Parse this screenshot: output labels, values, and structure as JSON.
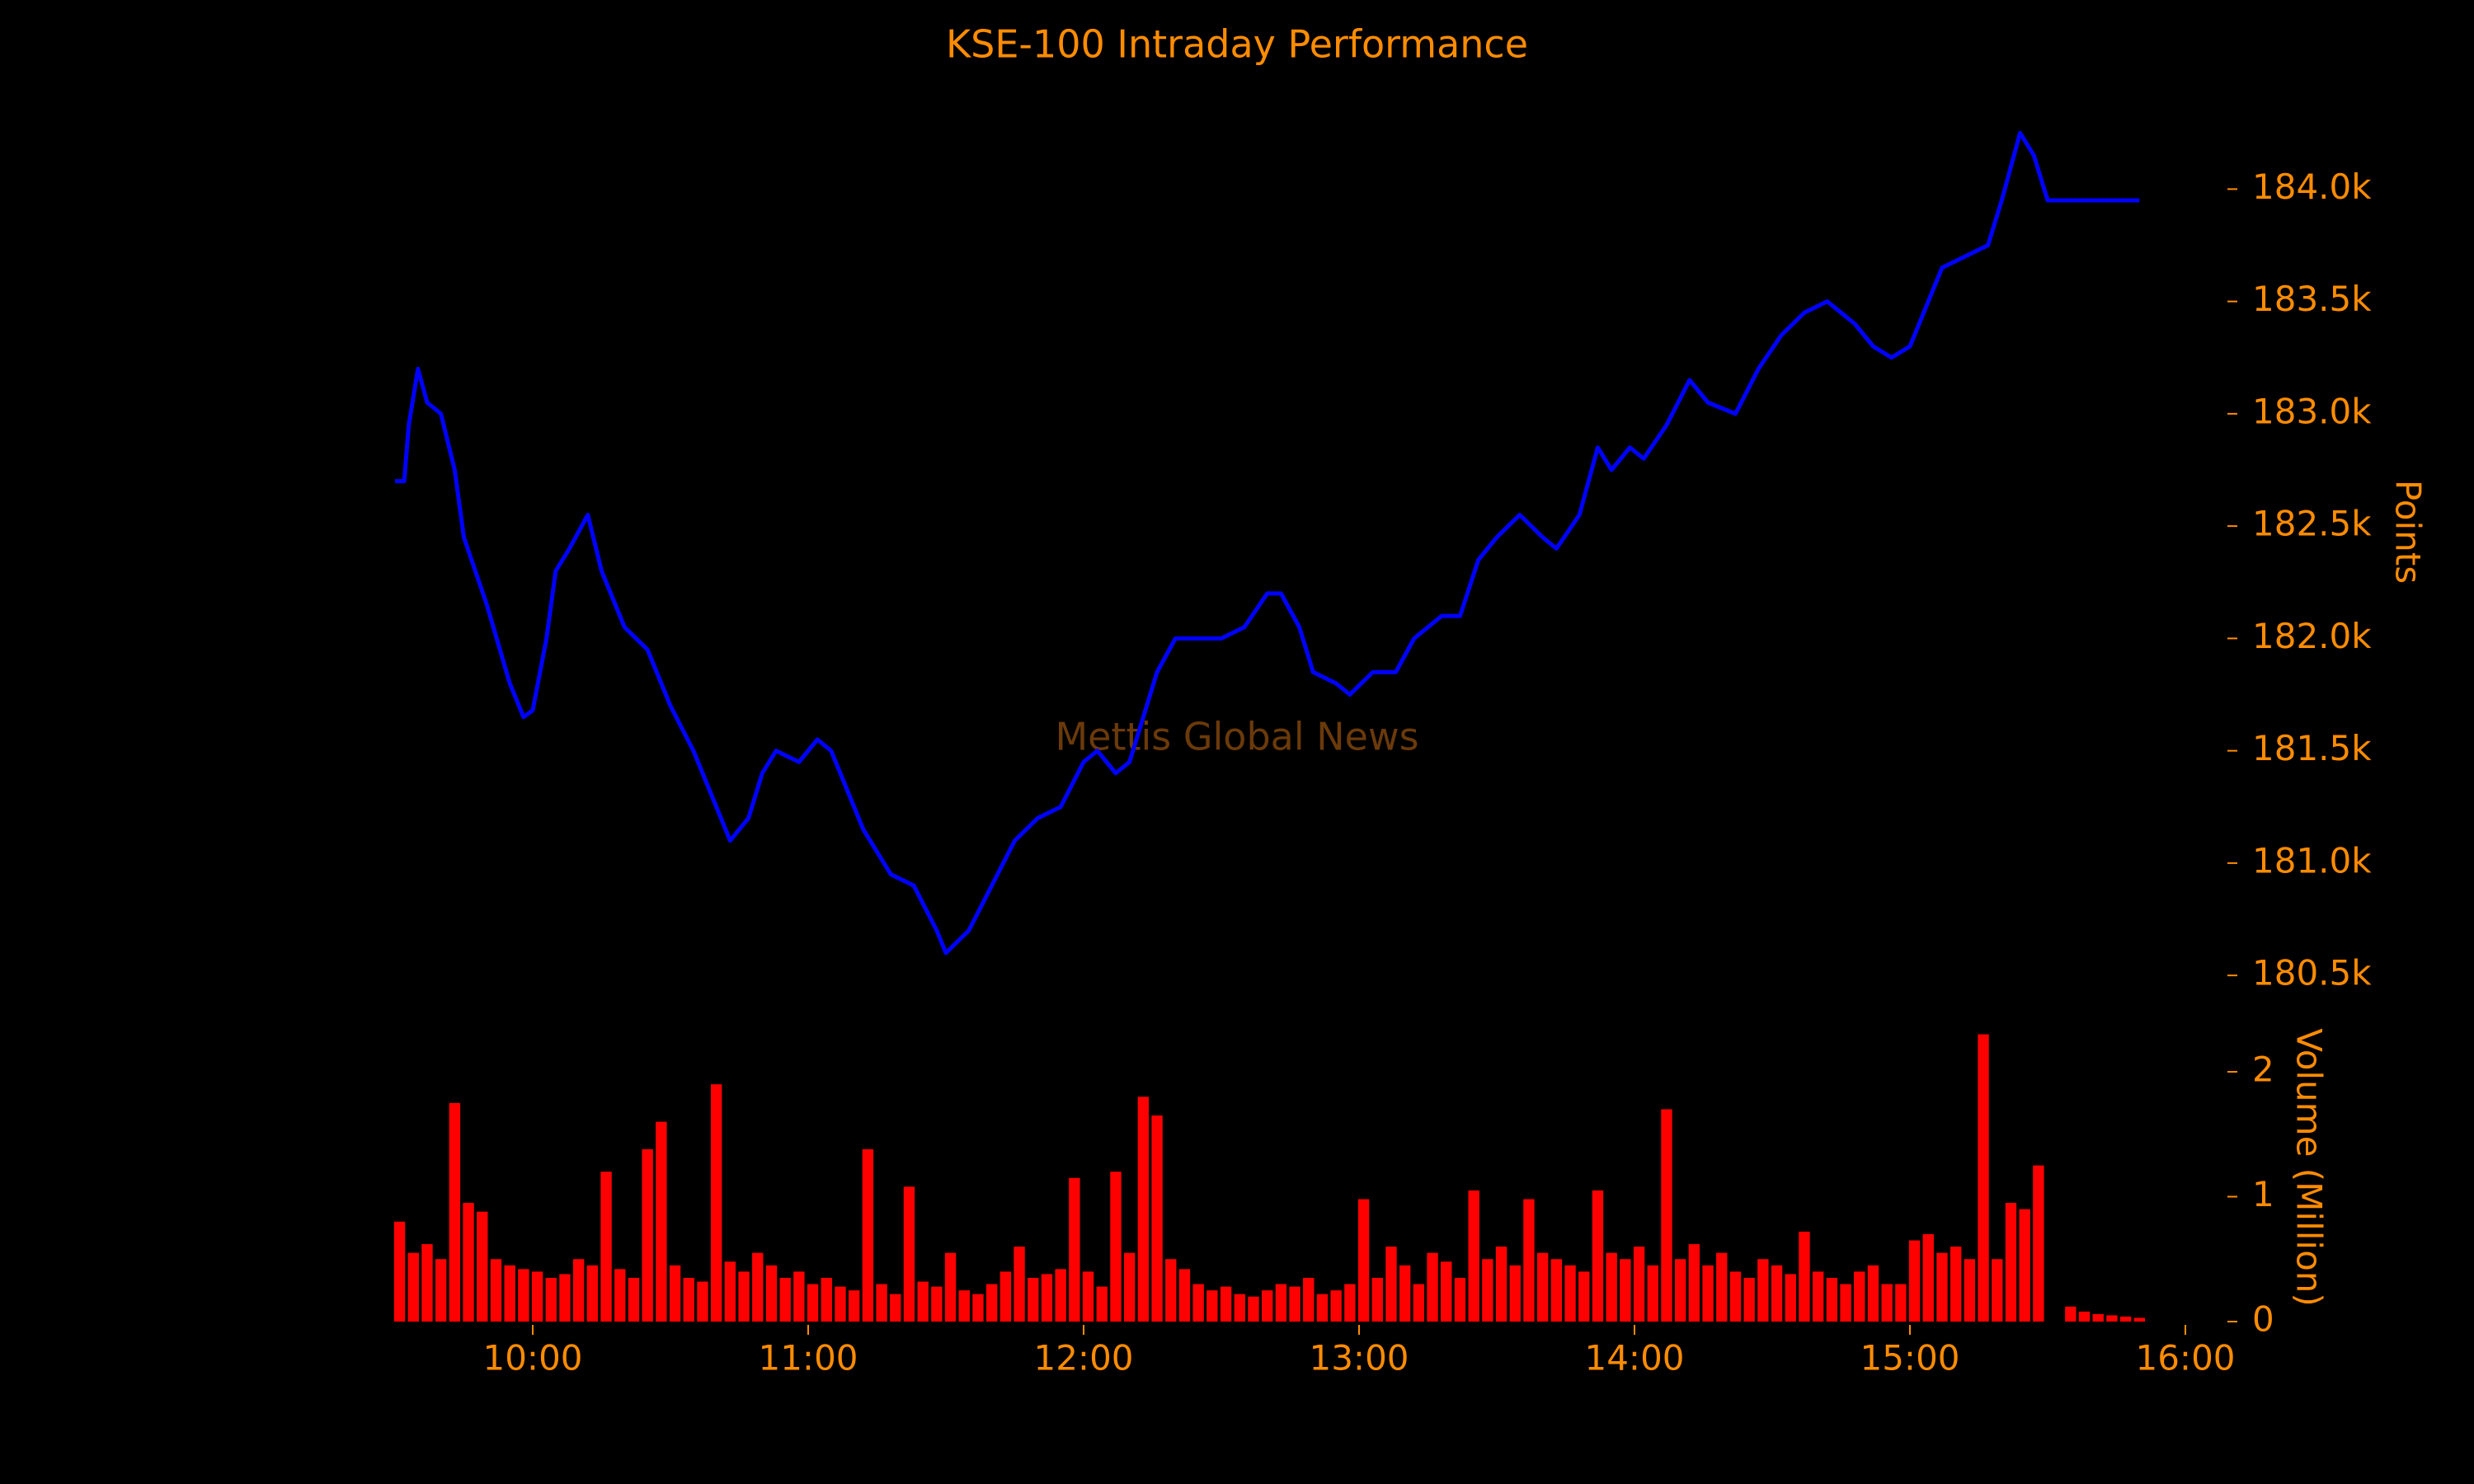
{
  "chart_data": [
    {
      "type": "line",
      "title": "KSE-100 Intraday Performance",
      "annotation": "Mettis Global News",
      "ylabel": "Points",
      "color": "#0000ff",
      "text_color": "#ff8c00",
      "watermark_color": "#6b3a0a",
      "x": [
        "09:30",
        "09:32",
        "09:33",
        "09:35",
        "09:37",
        "09:40",
        "09:43",
        "09:45",
        "09:50",
        "09:55",
        "09:58",
        "10:00",
        "10:03",
        "10:05",
        "10:08",
        "10:12",
        "10:15",
        "10:20",
        "10:25",
        "10:30",
        "10:35",
        "10:40",
        "10:43",
        "10:47",
        "10:50",
        "10:53",
        "10:58",
        "11:02",
        "11:05",
        "11:08",
        "11:12",
        "11:18",
        "11:23",
        "11:28",
        "11:30",
        "11:35",
        "11:40",
        "11:45",
        "11:50",
        "11:55",
        "12:00",
        "12:03",
        "12:07",
        "12:10",
        "12:13",
        "12:16",
        "12:20",
        "12:25",
        "12:30",
        "12:35",
        "12:40",
        "12:43",
        "12:47",
        "12:50",
        "12:55",
        "12:58",
        "13:03",
        "13:08",
        "13:12",
        "13:18",
        "13:22",
        "13:26",
        "13:30",
        "13:35",
        "13:40",
        "13:43",
        "13:48",
        "13:52",
        "13:55",
        "13:59",
        "14:02",
        "14:07",
        "14:12",
        "14:16",
        "14:22",
        "14:27",
        "14:32",
        "14:37",
        "14:42",
        "14:48",
        "14:52",
        "14:56",
        "15:00",
        "15:03",
        "15:07",
        "15:12",
        "15:17",
        "15:20",
        "15:24",
        "15:27",
        "15:30",
        "15:50"
      ],
      "values": [
        182700,
        182700,
        182950,
        183200,
        183050,
        183000,
        182750,
        182450,
        182150,
        181800,
        181650,
        181680,
        182000,
        182300,
        182400,
        182550,
        182300,
        182050,
        181950,
        181700,
        181500,
        181250,
        181100,
        181200,
        181400,
        181500,
        181450,
        181550,
        181500,
        181350,
        181150,
        180950,
        180900,
        180700,
        180600,
        180700,
        180900,
        181100,
        181200,
        181250,
        181450,
        181500,
        181400,
        181450,
        181650,
        181850,
        182000,
        182000,
        182000,
        182050,
        182200,
        182200,
        182050,
        181850,
        181800,
        181750,
        181850,
        181850,
        182000,
        182100,
        182100,
        182350,
        182450,
        182550,
        182450,
        182400,
        182550,
        182850,
        182750,
        182850,
        182800,
        182950,
        183150,
        183050,
        183000,
        183200,
        183350,
        183450,
        183500,
        183400,
        183300,
        183250,
        183300,
        183450,
        183650,
        183700,
        183750,
        183950,
        184250,
        184150,
        183950,
        183950
      ],
      "xlim": [
        "09:30",
        "16:00"
      ],
      "ylim": [
        180350,
        184350
      ],
      "yticks": [
        {
          "value": 180500,
          "label": "180.5k"
        },
        {
          "value": 181000,
          "label": "181.0k"
        },
        {
          "value": 181500,
          "label": "181.5k"
        },
        {
          "value": 182000,
          "label": "182.0k"
        },
        {
          "value": 182500,
          "label": "182.5k"
        },
        {
          "value": 183000,
          "label": "183.0k"
        },
        {
          "value": 183500,
          "label": "183.5k"
        },
        {
          "value": 184000,
          "label": "184.0k"
        }
      ]
    },
    {
      "type": "bar",
      "ylabel": "Volume (Million)",
      "color": "#ff0000",
      "text_color": "#ff8c00",
      "x": [
        "09:31",
        "09:34",
        "09:37",
        "09:40",
        "09:43",
        "09:46",
        "09:49",
        "09:52",
        "09:55",
        "09:58",
        "10:01",
        "10:04",
        "10:07",
        "10:10",
        "10:13",
        "10:16",
        "10:19",
        "10:22",
        "10:25",
        "10:28",
        "10:31",
        "10:34",
        "10:37",
        "10:40",
        "10:43",
        "10:46",
        "10:49",
        "10:52",
        "10:55",
        "10:58",
        "11:01",
        "11:04",
        "11:07",
        "11:10",
        "11:13",
        "11:16",
        "11:19",
        "11:22",
        "11:25",
        "11:28",
        "11:31",
        "11:34",
        "11:37",
        "11:40",
        "11:43",
        "11:46",
        "11:49",
        "11:52",
        "11:55",
        "11:58",
        "12:01",
        "12:04",
        "12:07",
        "12:10",
        "12:13",
        "12:16",
        "12:19",
        "12:22",
        "12:25",
        "12:28",
        "12:31",
        "12:34",
        "12:37",
        "12:40",
        "12:43",
        "12:46",
        "12:49",
        "12:52",
        "12:55",
        "12:58",
        "13:01",
        "13:04",
        "13:07",
        "13:10",
        "13:13",
        "13:16",
        "13:19",
        "13:22",
        "13:25",
        "13:28",
        "13:31",
        "13:34",
        "13:37",
        "13:40",
        "13:43",
        "13:46",
        "13:49",
        "13:52",
        "13:55",
        "13:58",
        "14:01",
        "14:04",
        "14:07",
        "14:10",
        "14:13",
        "14:16",
        "14:19",
        "14:22",
        "14:25",
        "14:28",
        "14:31",
        "14:34",
        "14:37",
        "14:40",
        "14:43",
        "14:46",
        "14:49",
        "14:52",
        "14:55",
        "14:58",
        "15:01",
        "15:04",
        "15:07",
        "15:10",
        "15:13",
        "15:16",
        "15:19",
        "15:22",
        "15:25",
        "15:28",
        "15:35",
        "15:38",
        "15:41",
        "15:44",
        "15:47",
        "15:50"
      ],
      "values": [
        0.8,
        0.55,
        0.62,
        0.5,
        1.75,
        0.95,
        0.88,
        0.5,
        0.45,
        0.42,
        0.4,
        0.35,
        0.38,
        0.5,
        0.45,
        1.2,
        0.42,
        0.35,
        1.38,
        1.6,
        0.45,
        0.35,
        0.32,
        1.9,
        0.48,
        0.4,
        0.55,
        0.45,
        0.35,
        0.4,
        0.3,
        0.35,
        0.28,
        0.25,
        1.38,
        0.3,
        0.22,
        1.08,
        0.32,
        0.28,
        0.55,
        0.25,
        0.22,
        0.3,
        0.4,
        0.6,
        0.35,
        0.38,
        0.42,
        1.15,
        0.4,
        0.28,
        1.2,
        0.55,
        1.8,
        1.65,
        0.5,
        0.42,
        0.3,
        0.25,
        0.28,
        0.22,
        0.2,
        0.25,
        0.3,
        0.28,
        0.35,
        0.22,
        0.25,
        0.3,
        0.98,
        0.35,
        0.6,
        0.45,
        0.3,
        0.55,
        0.48,
        0.35,
        1.05,
        0.5,
        0.6,
        0.45,
        0.98,
        0.55,
        0.5,
        0.45,
        0.4,
        1.05,
        0.55,
        0.5,
        0.6,
        0.45,
        1.7,
        0.5,
        0.62,
        0.45,
        0.55,
        0.4,
        0.35,
        0.5,
        0.45,
        0.38,
        0.72,
        0.4,
        0.35,
        0.3,
        0.4,
        0.45,
        0.3,
        0.3,
        0.65,
        0.7,
        0.55,
        0.6,
        0.5,
        2.3,
        0.5,
        0.95,
        0.9,
        1.25,
        0.12,
        0.08,
        0.06,
        0.05,
        0.04,
        0.03
      ],
      "xlim": [
        "09:30",
        "16:00"
      ],
      "ylim": [
        0,
        2.35
      ],
      "yticks": [
        0,
        1,
        2
      ],
      "xticks": [
        "10:00",
        "11:00",
        "12:00",
        "13:00",
        "14:00",
        "15:00",
        "16:00"
      ]
    }
  ]
}
